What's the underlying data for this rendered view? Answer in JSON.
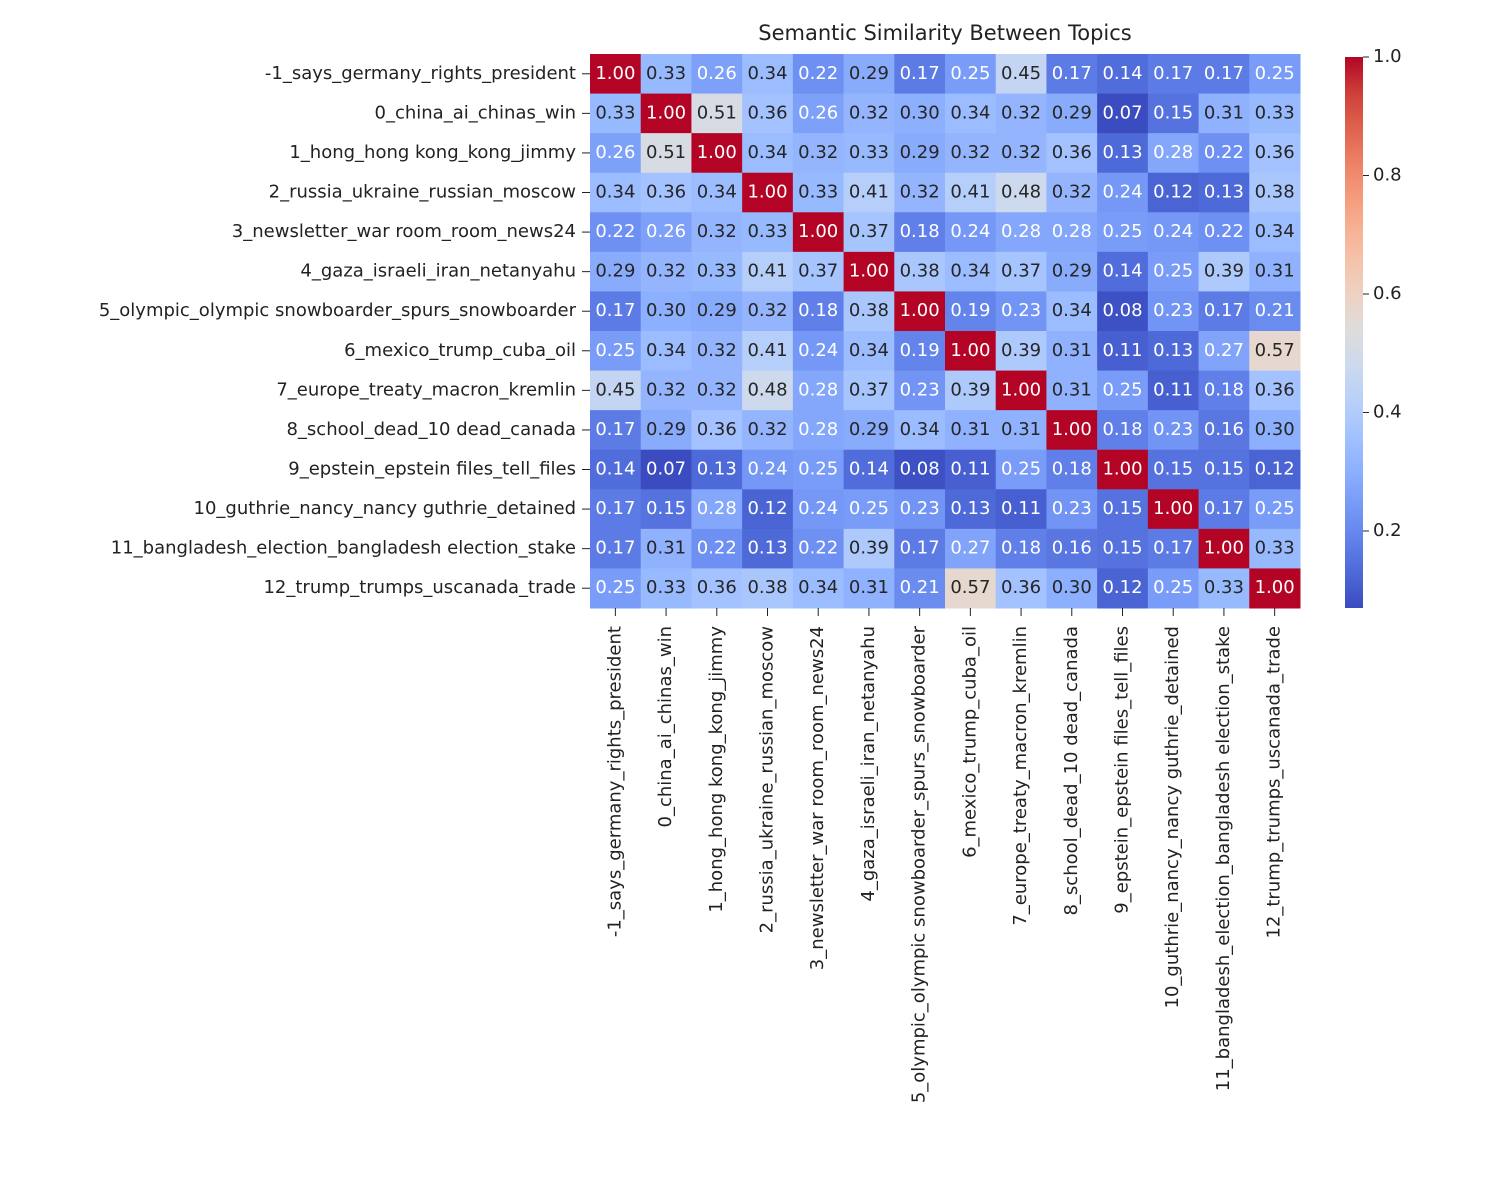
{
  "chart_data": {
    "type": "heatmap",
    "title": "Semantic Similarity Between Topics",
    "categories": [
      "-1_says_germany_rights_president",
      "0_china_ai_chinas_win",
      "1_hong_hong kong_kong_jimmy",
      "2_russia_ukraine_russian_moscow",
      "3_newsletter_war room_room_news24",
      "4_gaza_israeli_iran_netanyahu",
      "5_olympic_olympic snowboarder_spurs_snowboarder",
      "6_mexico_trump_cuba_oil",
      "7_europe_treaty_macron_kremlin",
      "8_school_dead_10 dead_canada",
      "9_epstein_epstein files_tell_files",
      "10_guthrie_nancy_nancy guthrie_detained",
      "11_bangladesh_election_bangladesh election_stake",
      "12_trump_trumps_uscanada_trade"
    ],
    "values": [
      [
        1.0,
        0.33,
        0.26,
        0.34,
        0.22,
        0.29,
        0.17,
        0.25,
        0.45,
        0.17,
        0.14,
        0.17,
        0.17,
        0.25
      ],
      [
        0.33,
        1.0,
        0.51,
        0.36,
        0.26,
        0.32,
        0.3,
        0.34,
        0.32,
        0.29,
        0.07,
        0.15,
        0.31,
        0.33
      ],
      [
        0.26,
        0.51,
        1.0,
        0.34,
        0.32,
        0.33,
        0.29,
        0.32,
        0.32,
        0.36,
        0.13,
        0.28,
        0.22,
        0.36
      ],
      [
        0.34,
        0.36,
        0.34,
        1.0,
        0.33,
        0.41,
        0.32,
        0.41,
        0.48,
        0.32,
        0.24,
        0.12,
        0.13,
        0.38
      ],
      [
        0.22,
        0.26,
        0.32,
        0.33,
        1.0,
        0.37,
        0.18,
        0.24,
        0.28,
        0.28,
        0.25,
        0.24,
        0.22,
        0.34
      ],
      [
        0.29,
        0.32,
        0.33,
        0.41,
        0.37,
        1.0,
        0.38,
        0.34,
        0.37,
        0.29,
        0.14,
        0.25,
        0.39,
        0.31
      ],
      [
        0.17,
        0.3,
        0.29,
        0.32,
        0.18,
        0.38,
        1.0,
        0.19,
        0.23,
        0.34,
        0.08,
        0.23,
        0.17,
        0.21
      ],
      [
        0.25,
        0.34,
        0.32,
        0.41,
        0.24,
        0.34,
        0.19,
        1.0,
        0.39,
        0.31,
        0.11,
        0.13,
        0.27,
        0.57
      ],
      [
        0.45,
        0.32,
        0.32,
        0.48,
        0.28,
        0.37,
        0.23,
        0.39,
        1.0,
        0.31,
        0.25,
        0.11,
        0.18,
        0.36
      ],
      [
        0.17,
        0.29,
        0.36,
        0.32,
        0.28,
        0.29,
        0.34,
        0.31,
        0.31,
        1.0,
        0.18,
        0.23,
        0.16,
        0.3
      ],
      [
        0.14,
        0.07,
        0.13,
        0.24,
        0.25,
        0.14,
        0.08,
        0.11,
        0.25,
        0.18,
        1.0,
        0.15,
        0.15,
        0.12
      ],
      [
        0.17,
        0.15,
        0.28,
        0.12,
        0.24,
        0.25,
        0.23,
        0.13,
        0.11,
        0.23,
        0.15,
        1.0,
        0.17,
        0.25
      ],
      [
        0.17,
        0.31,
        0.22,
        0.13,
        0.22,
        0.39,
        0.17,
        0.27,
        0.18,
        0.16,
        0.15,
        0.17,
        1.0,
        0.33
      ],
      [
        0.25,
        0.33,
        0.36,
        0.38,
        0.34,
        0.31,
        0.21,
        0.57,
        0.36,
        0.3,
        0.12,
        0.25,
        0.33,
        1.0
      ]
    ],
    "value_labels": [
      [
        "1.00",
        "0.33",
        "0.26",
        "0.34",
        "0.22",
        "0.29",
        "0.17",
        "0.25",
        "0.45",
        "0.17",
        "0.14",
        "0.17",
        "0.17",
        "0.25"
      ],
      [
        "0.33",
        "1.00",
        "0.51",
        "0.36",
        "0.26",
        "0.32",
        "0.30",
        "0.34",
        "0.32",
        "0.29",
        "0.07",
        "0.15",
        "0.31",
        "0.33"
      ],
      [
        "0.26",
        "0.51",
        "1.00",
        "0.34",
        "0.32",
        "0.33",
        "0.29",
        "0.32",
        "0.32",
        "0.36",
        "0.13",
        "0.28",
        "0.22",
        "0.36"
      ],
      [
        "0.34",
        "0.36",
        "0.34",
        "1.00",
        "0.33",
        "0.41",
        "0.32",
        "0.41",
        "0.48",
        "0.32",
        "0.24",
        "0.12",
        "0.13",
        "0.38"
      ],
      [
        "0.22",
        "0.26",
        "0.32",
        "0.33",
        "1.00",
        "0.37",
        "0.18",
        "0.24",
        "0.28",
        "0.28",
        "0.25",
        "0.24",
        "0.22",
        "0.34"
      ],
      [
        "0.29",
        "0.32",
        "0.33",
        "0.41",
        "0.37",
        "1.00",
        "0.38",
        "0.34",
        "0.37",
        "0.29",
        "0.14",
        "0.25",
        "0.39",
        "0.31"
      ],
      [
        "0.17",
        "0.30",
        "0.29",
        "0.32",
        "0.18",
        "0.38",
        "1.00",
        "0.19",
        "0.23",
        "0.34",
        "0.08",
        "0.23",
        "0.17",
        "0.21"
      ],
      [
        "0.25",
        "0.34",
        "0.32",
        "0.41",
        "0.24",
        "0.34",
        "0.19",
        "1.00",
        "0.39",
        "0.31",
        "0.11",
        "0.13",
        "0.27",
        "0.57"
      ],
      [
        "0.45",
        "0.32",
        "0.32",
        "0.48",
        "0.28",
        "0.37",
        "0.23",
        "0.39",
        "1.00",
        "0.31",
        "0.25",
        "0.11",
        "0.18",
        "0.36"
      ],
      [
        "0.17",
        "0.29",
        "0.36",
        "0.32",
        "0.28",
        "0.29",
        "0.34",
        "0.31",
        "0.31",
        "1.00",
        "0.18",
        "0.23",
        "0.16",
        "0.30"
      ],
      [
        "0.14",
        "0.07",
        "0.13",
        "0.24",
        "0.25",
        "0.14",
        "0.08",
        "0.11",
        "0.25",
        "0.18",
        "1.00",
        "0.15",
        "0.15",
        "0.12"
      ],
      [
        "0.17",
        "0.15",
        "0.28",
        "0.12",
        "0.24",
        "0.25",
        "0.23",
        "0.13",
        "0.11",
        "0.23",
        "0.15",
        "1.00",
        "0.17",
        "0.25"
      ],
      [
        "0.17",
        "0.31",
        "0.22",
        "0.13",
        "0.22",
        "0.39",
        "0.17",
        "0.27",
        "0.18",
        "0.16",
        "0.15",
        "0.17",
        "1.00",
        "0.33"
      ],
      [
        "0.25",
        "0.33",
        "0.36",
        "0.38",
        "0.34",
        "0.31",
        "0.21",
        "0.57",
        "0.36",
        "0.30",
        "0.12",
        "0.25",
        "0.33",
        "1.00"
      ]
    ],
    "colormap": "coolwarm",
    "clim": [
      0.07,
      1
    ],
    "cticks": [
      0.2,
      0.4,
      0.6,
      0.8,
      {
        "value": 1,
        "label": "1.0"
      }
    ]
  }
}
